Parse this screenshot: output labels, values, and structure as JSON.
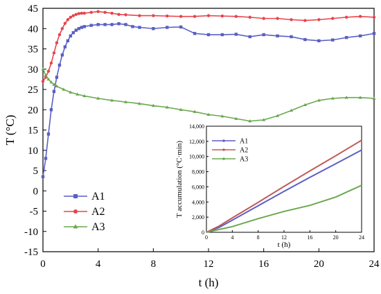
{
  "chart_data": [
    {
      "type": "scatter",
      "title": "",
      "xlabel": "t (h)",
      "ylabel": "T (°C)",
      "xlim": [
        0,
        24
      ],
      "ylim": [
        -15,
        45
      ],
      "x_ticks": [
        "0",
        "4",
        "8",
        "12",
        "16",
        "20",
        "24"
      ],
      "y_ticks": [
        "-15",
        "-10",
        "-5",
        "0",
        "5",
        "10",
        "15",
        "20",
        "25",
        "30",
        "35",
        "40",
        "45"
      ],
      "legend_position": "lower-left",
      "grid": false,
      "series": [
        {
          "name": "A1",
          "color": "#5a5fc4",
          "marker": "square",
          "x": [
            0,
            0.2,
            0.4,
            0.6,
            0.8,
            1,
            1.2,
            1.4,
            1.6,
            1.8,
            2,
            2.2,
            2.4,
            2.6,
            2.8,
            3,
            3.5,
            4,
            4.5,
            5,
            5.5,
            6,
            6.5,
            7,
            8,
            9,
            10,
            11,
            12,
            13,
            14,
            15,
            16,
            17,
            18,
            19,
            20,
            21,
            22,
            23,
            24
          ],
          "y": [
            3.5,
            8,
            14,
            20,
            24.5,
            28,
            31,
            33.5,
            35.5,
            37,
            38.2,
            39,
            39.6,
            40,
            40.3,
            40.5,
            40.8,
            41,
            41,
            41,
            41.2,
            41,
            40.5,
            40.3,
            40,
            40.3,
            40.4,
            38.8,
            38.5,
            38.5,
            38.6,
            38,
            38.5,
            38.2,
            38,
            37.3,
            37,
            37.2,
            37.8,
            38.2,
            38.8
          ]
        },
        {
          "name": "A2",
          "color": "#e8434b",
          "marker": "circle",
          "x": [
            0,
            0.2,
            0.4,
            0.6,
            0.8,
            1,
            1.2,
            1.4,
            1.6,
            1.8,
            2,
            2.2,
            2.4,
            2.6,
            2.8,
            3,
            3.5,
            4,
            4.5,
            5,
            5.5,
            6,
            7,
            8,
            9,
            10,
            11,
            12,
            13,
            14,
            15,
            16,
            17,
            18,
            19,
            20,
            21,
            22,
            23,
            24
          ],
          "y": [
            27,
            28,
            29.5,
            31.5,
            34,
            36.5,
            38.5,
            40,
            41.3,
            42.2,
            42.8,
            43.2,
            43.5,
            43.7,
            43.8,
            43.8,
            44,
            44.2,
            44,
            43.8,
            43.5,
            43.4,
            43.2,
            43.2,
            43.1,
            43,
            43,
            43.2,
            43.1,
            43,
            42.8,
            42.5,
            42.5,
            42.2,
            42,
            42.2,
            42.5,
            42.8,
            43,
            42.8
          ]
        },
        {
          "name": "A3",
          "color": "#6aa84f",
          "marker": "triangle",
          "x": [
            0,
            0.2,
            0.4,
            0.6,
            0.8,
            1,
            1.5,
            2,
            2.5,
            3,
            4,
            5,
            6,
            7,
            8,
            9,
            10,
            11,
            12,
            13,
            14,
            15,
            16,
            17,
            18,
            19,
            20,
            21,
            22,
            23,
            24
          ],
          "y": [
            30,
            28.5,
            27.5,
            26.8,
            26.2,
            25.8,
            25,
            24.3,
            23.8,
            23.4,
            22.8,
            22.3,
            21.9,
            21.5,
            21,
            20.6,
            20,
            19.5,
            18.8,
            18.4,
            17.8,
            17.2,
            17.5,
            18.5,
            19.8,
            21.2,
            22.3,
            22.8,
            23,
            23,
            22.8
          ]
        }
      ]
    },
    {
      "type": "line",
      "title": "",
      "xlabel": "t (h)",
      "ylabel": "T accumulation (°C·min)",
      "xlim": [
        0,
        24
      ],
      "ylim": [
        0,
        14000
      ],
      "x_ticks": [
        "0",
        "4",
        "8",
        "12",
        "16",
        "20",
        "24"
      ],
      "y_ticks": [
        "0",
        "2,000",
        "4,000",
        "6,000",
        "8,000",
        "10,000",
        "12,000",
        "14,000"
      ],
      "legend_position": "top-left",
      "grid": false,
      "series": [
        {
          "name": "A1",
          "color": "#5a5fc4",
          "x": [
            0,
            2,
            4,
            8,
            12,
            16,
            20,
            24
          ],
          "y": [
            0,
            650,
            1600,
            3500,
            5400,
            7250,
            9050,
            10850
          ]
        },
        {
          "name": "A2",
          "color": "#c05a5a",
          "x": [
            0,
            2,
            4,
            8,
            12,
            16,
            20,
            24
          ],
          "y": [
            0,
            850,
            1900,
            3950,
            6050,
            8100,
            10100,
            12150
          ]
        },
        {
          "name": "A3",
          "color": "#6aa84f",
          "x": [
            0,
            2,
            4,
            8,
            12,
            16,
            20,
            24
          ],
          "y": [
            0,
            380,
            750,
            1800,
            2750,
            3550,
            4650,
            6200
          ]
        }
      ]
    }
  ]
}
